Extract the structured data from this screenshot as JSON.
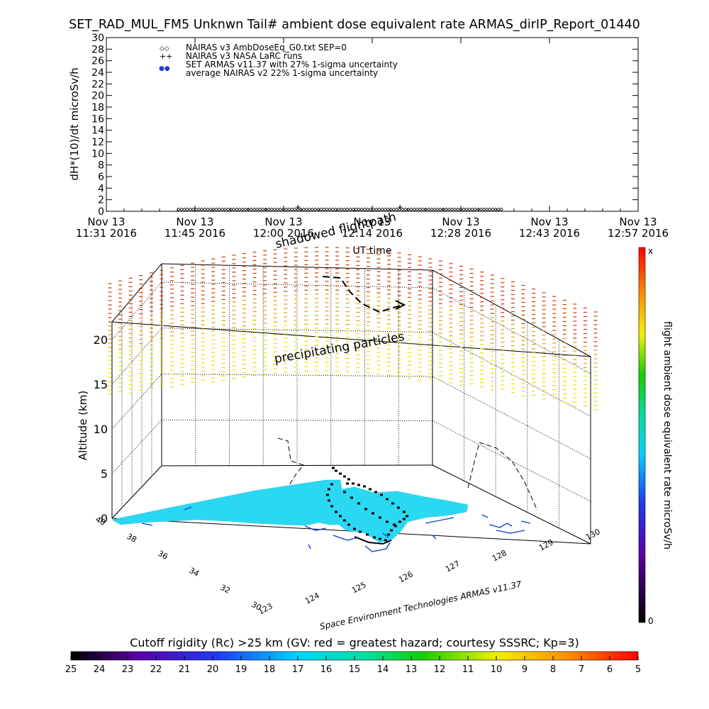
{
  "title": "SET_RAD_MUL_FM5 Unknwn Tail#  ambient dose equivalent rate ARMAS_dirIP_Report_01440",
  "chart_data": [
    {
      "type": "scatter",
      "ylabel": "dH*(10)/dt microSv/h",
      "xlabel": "UT time",
      "ylim": [
        0,
        30
      ],
      "ytick_step": 2,
      "x_ticks": [
        {
          "top": "Nov 13",
          "bottom": "11:31 2016"
        },
        {
          "top": "Nov 13",
          "bottom": "11:45 2016"
        },
        {
          "top": "Nov 13",
          "bottom": "12:00 2016"
        },
        {
          "top": "Nov 13",
          "bottom": "12:14 2016"
        },
        {
          "top": "Nov 13",
          "bottom": "12:28 2016"
        },
        {
          "top": "Nov 13",
          "bottom": "12:43 2016"
        },
        {
          "top": "Nov 13",
          "bottom": "12:57 2016"
        }
      ],
      "legend": [
        {
          "symbol": "◇◇",
          "label": "NAIRAS v3 AmbDoseEq_G0.txt SEP=0",
          "color": "#000000"
        },
        {
          "symbol": "++",
          "label": "NAIRAS v3 NASA LaRC runs",
          "color": "#000000"
        },
        {
          "symbol": "●●",
          "label": "SET ARMAS v11.37 with 27% 1-sigma uncertainty",
          "color": "#1f3ed8"
        },
        {
          "symbol": "",
          "label": "average NAIRAS v2 22% 1-sigma uncertainty",
          "color": "#000000"
        }
      ],
      "legend_position": "top-left",
      "series": [
        {
          "name": "NAIRAS v3 AmbDoseEq_G0.txt SEP=0",
          "marker": "diamond",
          "x_range_minutes": [
            11.7,
            64.3
          ],
          "y": 0.2
        },
        {
          "name": "NAIRAS v3 NASA LaRC runs",
          "marker": "plus",
          "x_minutes": [
            31.0,
            47.5
          ],
          "y": 0.6
        }
      ]
    },
    {
      "type": "3d-trajectory",
      "zlabel": "Altitude (km)",
      "z_ticks": [
        0,
        5,
        10,
        15,
        20
      ],
      "lat_ticks": [
        30,
        32,
        34,
        36,
        38,
        40
      ],
      "lon_ticks": [
        123,
        124,
        125,
        126,
        127,
        128,
        129,
        130
      ],
      "annotations": [
        "shadowed flightpath",
        "precipitating particles"
      ],
      "footer": "Space Environment Technologies ARMAS v11.37",
      "right_colorbar": {
        "label": "flight ambient dose equivalent rate microSv/h",
        "top": "x",
        "bottom": "0"
      }
    }
  ],
  "bottom_colorbar": {
    "title": "Cutoff rigidity (Rc) >25 km (GV: red = greatest hazard; courtesy SSSRC; Kp=3)",
    "ticks": [
      "25",
      "24",
      "23",
      "22",
      "21",
      "20",
      "19",
      "18",
      "17",
      "16",
      "15",
      "14",
      "13",
      "12",
      "11",
      "10",
      "9",
      "8",
      "7",
      "6",
      "5"
    ]
  },
  "colors": {
    "land": "#2ad8f2",
    "ocean_coast": "#1240d0",
    "trajectory": "#000000"
  }
}
